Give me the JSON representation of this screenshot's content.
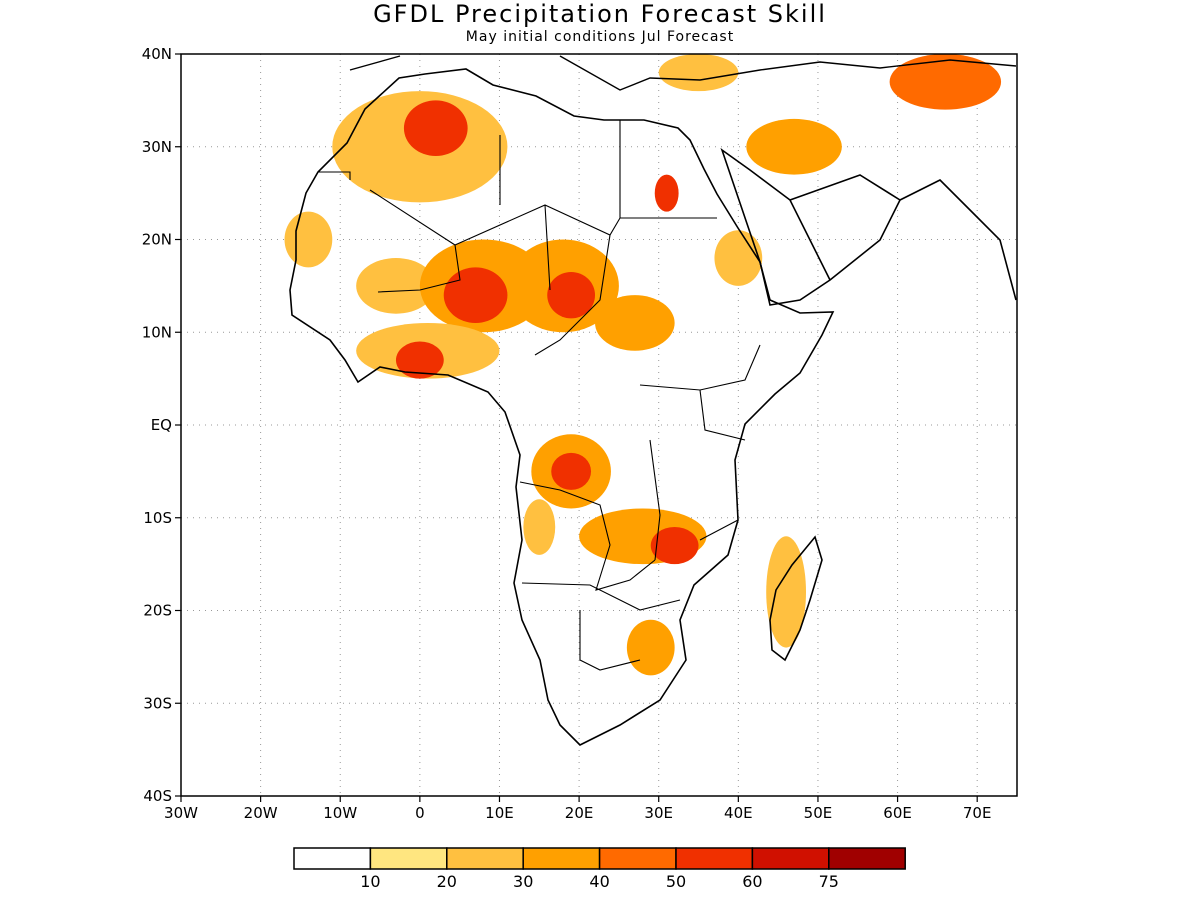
{
  "title": "GFDL Precipitation Forecast Skill",
  "subtitle": "May initial conditions  Jul Forecast",
  "map": {
    "lon_range": [
      -30,
      75
    ],
    "lat_range": [
      -40,
      40
    ],
    "lat_ticks": [
      {
        "value": 40,
        "label": "40N"
      },
      {
        "value": 30,
        "label": "30N"
      },
      {
        "value": 20,
        "label": "20N"
      },
      {
        "value": 10,
        "label": "10N"
      },
      {
        "value": 0,
        "label": "EQ"
      },
      {
        "value": -10,
        "label": "10S"
      },
      {
        "value": -20,
        "label": "20S"
      },
      {
        "value": -30,
        "label": "30S"
      },
      {
        "value": -40,
        "label": "40S"
      }
    ],
    "lon_ticks": [
      {
        "value": -30,
        "label": "30W"
      },
      {
        "value": -20,
        "label": "20W"
      },
      {
        "value": -10,
        "label": "10W"
      },
      {
        "value": 0,
        "label": "0"
      },
      {
        "value": 10,
        "label": "10E"
      },
      {
        "value": 20,
        "label": "20E"
      },
      {
        "value": 30,
        "label": "30E"
      },
      {
        "value": 40,
        "label": "40E"
      },
      {
        "value": 50,
        "label": "50E"
      },
      {
        "value": 60,
        "label": "60E"
      },
      {
        "value": 70,
        "label": "70E"
      }
    ],
    "grid": "dotted"
  },
  "colorbar": {
    "colors": [
      "#ffffff",
      "#ffe680",
      "#ffc040",
      "#ffa000",
      "#ff6a00",
      "#f03000",
      "#d01000",
      "#a00000"
    ],
    "labels": [
      "10",
      "20",
      "30",
      "40",
      "50",
      "60",
      "75"
    ]
  },
  "skill_regions": [
    {
      "lon": 0,
      "lat": 30,
      "rx": 11,
      "ry": 6,
      "level": 2
    },
    {
      "lon": 2,
      "lat": 32,
      "rx": 4,
      "ry": 3,
      "level": 5
    },
    {
      "lon": -14,
      "lat": 20,
      "rx": 3,
      "ry": 3,
      "level": 2
    },
    {
      "lon": -3,
      "lat": 15,
      "rx": 5,
      "ry": 3,
      "level": 2
    },
    {
      "lon": 8,
      "lat": 15,
      "rx": 8,
      "ry": 5,
      "level": 3
    },
    {
      "lon": 7,
      "lat": 14,
      "rx": 4,
      "ry": 3,
      "level": 5
    },
    {
      "lon": 18,
      "lat": 15,
      "rx": 7,
      "ry": 5,
      "level": 3
    },
    {
      "lon": 19,
      "lat": 14,
      "rx": 3,
      "ry": 2.5,
      "level": 5
    },
    {
      "lon": 27,
      "lat": 11,
      "rx": 5,
      "ry": 3,
      "level": 3
    },
    {
      "lon": 1,
      "lat": 8,
      "rx": 9,
      "ry": 3,
      "level": 2
    },
    {
      "lon": 0,
      "lat": 7,
      "rx": 3,
      "ry": 2,
      "level": 5
    },
    {
      "lon": 19,
      "lat": -5,
      "rx": 5,
      "ry": 4,
      "level": 3
    },
    {
      "lon": 19,
      "lat": -5,
      "rx": 2.5,
      "ry": 2,
      "level": 5
    },
    {
      "lon": 28,
      "lat": -12,
      "rx": 8,
      "ry": 3,
      "level": 3
    },
    {
      "lon": 32,
      "lat": -13,
      "rx": 3,
      "ry": 2,
      "level": 5
    },
    {
      "lon": 15,
      "lat": -11,
      "rx": 2,
      "ry": 3,
      "level": 2
    },
    {
      "lon": 29,
      "lat": -24,
      "rx": 3,
      "ry": 3,
      "level": 3
    },
    {
      "lon": 46,
      "lat": -18,
      "rx": 2.5,
      "ry": 6,
      "level": 2
    },
    {
      "lon": 47,
      "lat": 30,
      "rx": 6,
      "ry": 3,
      "level": 3
    },
    {
      "lon": 66,
      "lat": 37,
      "rx": 7,
      "ry": 3,
      "level": 4
    },
    {
      "lon": 35,
      "lat": 38,
      "rx": 5,
      "ry": 2,
      "level": 2
    },
    {
      "lon": 40,
      "lat": 18,
      "rx": 3,
      "ry": 3,
      "level": 2
    },
    {
      "lon": 31,
      "lat": 25,
      "rx": 1.5,
      "ry": 2,
      "level": 5
    }
  ]
}
